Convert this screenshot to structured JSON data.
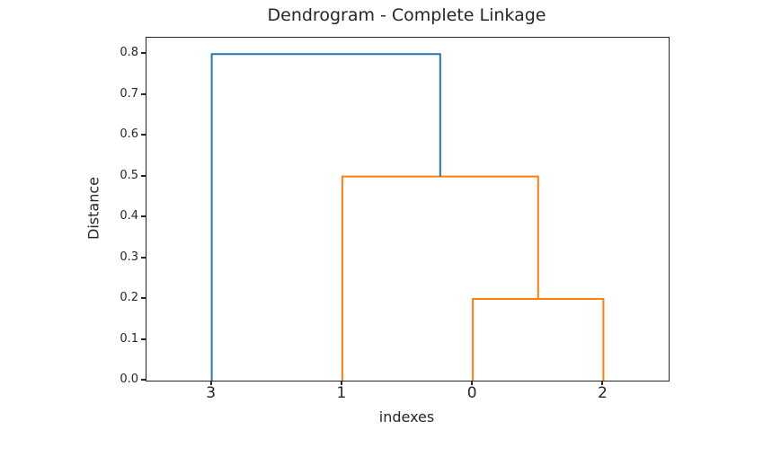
{
  "chart_data": {
    "type": "dendrogram",
    "title": "Dendrogram - Complete Linkage",
    "xlabel": "indexes",
    "ylabel": "Distance",
    "leaves": [
      "3",
      "1",
      "0",
      "2"
    ],
    "leaf_positions": [
      5,
      15,
      25,
      35
    ],
    "xlim": [
      0,
      40
    ],
    "ylim": [
      0,
      0.84
    ],
    "yticks": [
      0.0,
      0.1,
      0.2,
      0.3,
      0.4,
      0.5,
      0.6,
      0.7,
      0.8
    ],
    "ytick_labels": [
      "0.0",
      "0.1",
      "0.2",
      "0.3",
      "0.4",
      "0.5",
      "0.6",
      "0.7",
      "0.8"
    ],
    "grid": false,
    "legend": false,
    "merges": [
      {
        "members": [
          "0",
          "2"
        ],
        "distance": 0.2,
        "color": "#ff7f0e"
      },
      {
        "members": [
          "1",
          "0+2"
        ],
        "distance": 0.5,
        "color": "#ff7f0e"
      },
      {
        "members": [
          "3",
          "1+0+2"
        ],
        "distance": 0.8,
        "color": "#1f77b4"
      }
    ],
    "links": [
      {
        "x": [
          25,
          25,
          35,
          35
        ],
        "y": [
          0,
          0.2,
          0.2,
          0
        ],
        "color": "#ff7f0e"
      },
      {
        "x": [
          15,
          15,
          30,
          30
        ],
        "y": [
          0,
          0.5,
          0.5,
          0.2
        ],
        "color": "#ff7f0e"
      },
      {
        "x": [
          5,
          5,
          22.5,
          22.5
        ],
        "y": [
          0,
          0.8,
          0.8,
          0.5
        ],
        "color": "#1f77b4"
      }
    ],
    "colors": {
      "cluster_blue": "#1f77b4",
      "cluster_orange": "#ff7f0e",
      "text": "#262626",
      "spine": "#262626"
    }
  }
}
